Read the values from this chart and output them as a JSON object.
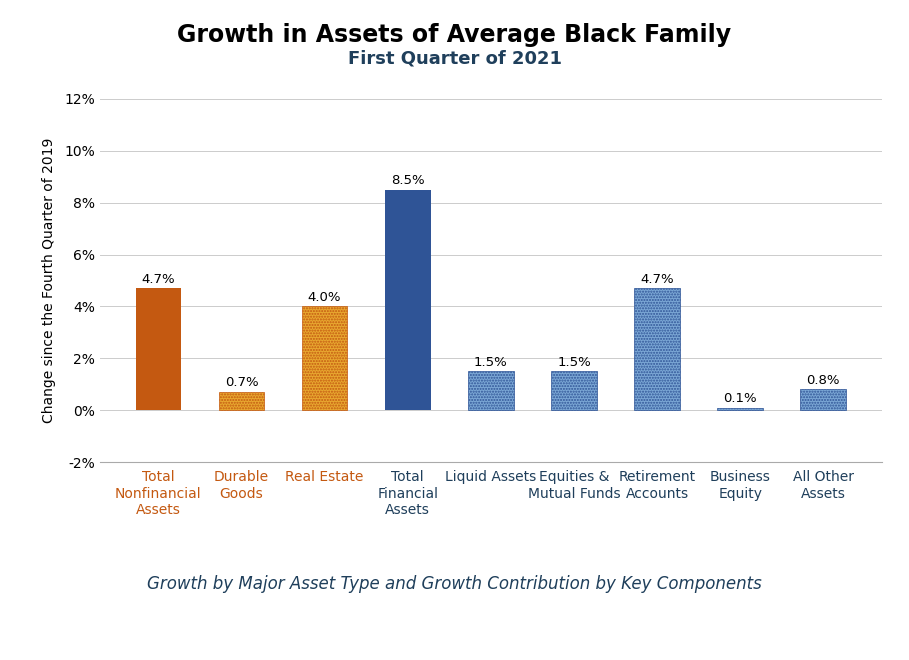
{
  "title": "Growth in Assets of Average Black Family",
  "subtitle": "First Quarter of 2021",
  "xlabel": "Growth by Major Asset Type and Growth Contribution by Key Components",
  "ylabel": "Change since the Fourth Quarter of 2019",
  "categories": [
    "Total\nNonfinancial\nAssets",
    "Durable\nGoods",
    "Real Estate",
    "Total\nFinancial\nAssets",
    "Liquid Assets",
    "Equities &\nMutual Funds",
    "Retirement\nAccounts",
    "Business\nEquity",
    "All Other\nAssets"
  ],
  "values": [
    4.7,
    0.7,
    4.0,
    8.5,
    1.5,
    1.5,
    4.7,
    0.1,
    0.8
  ],
  "bar_types": [
    "solid_orange",
    "hatch_orange",
    "hatch_orange",
    "solid_blue",
    "hatch_blue",
    "hatch_blue",
    "hatch_blue",
    "hatch_blue",
    "hatch_blue"
  ],
  "label_values": [
    "4.7%",
    "0.7%",
    "4.0%",
    "8.5%",
    "1.5%",
    "1.5%",
    "4.7%",
    "0.1%",
    "0.8%"
  ],
  "ylim": [
    -2,
    12
  ],
  "yticks": [
    -2,
    0,
    2,
    4,
    6,
    8,
    10,
    12
  ],
  "ytick_labels": [
    "-2%",
    "0%",
    "2%",
    "4%",
    "6%",
    "8%",
    "10%",
    "12%"
  ],
  "title_fontsize": 17,
  "subtitle_fontsize": 13,
  "xlabel_fontsize": 12,
  "ylabel_fontsize": 10,
  "tick_label_fontsize": 10,
  "value_label_fontsize": 9.5,
  "orange_solid_color": "#C45911",
  "orange_hatch_facecolor": "#E8A830",
  "orange_hatch_edgecolor": "#C45911",
  "blue_solid_color": "#2F5496",
  "blue_hatch_facecolor": "#7BA7D5",
  "blue_hatch_edgecolor": "#2F5496",
  "footer_bg_color": "#1F3F5B",
  "footer_text_color": "#FFFFFF",
  "grid_color": "#CCCCCC",
  "label_color_nonfinancial": "#C45911",
  "label_color_financial": "#1F3F5B",
  "subtitle_color": "#1F3F5B",
  "xlabel_color": "#1F3F5B"
}
